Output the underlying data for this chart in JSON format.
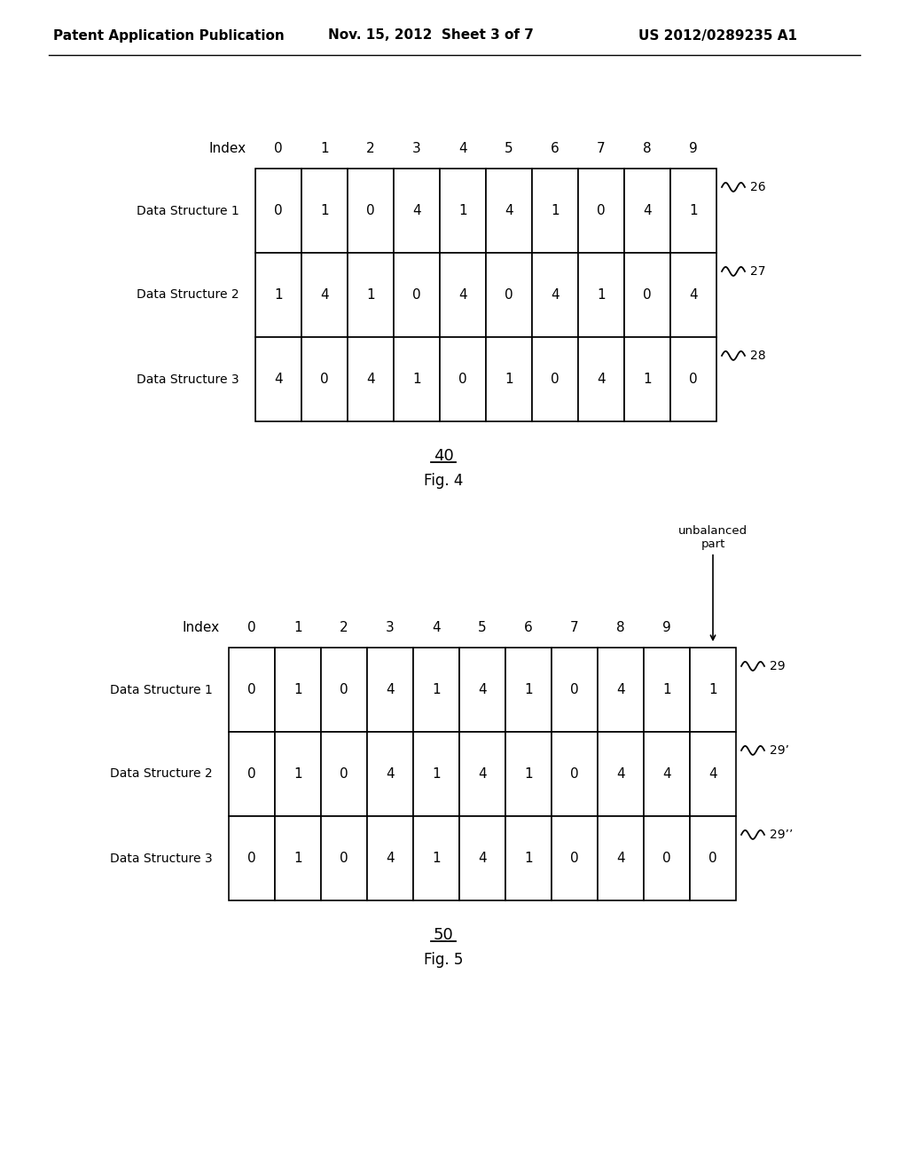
{
  "bg_color": "#ffffff",
  "fig4_label": "Fig. 4",
  "fig4_number": "40",
  "fig4_index_labels": [
    "0",
    "1",
    "2",
    "3",
    "4",
    "5",
    "6",
    "7",
    "8",
    "9"
  ],
  "fig4_row_labels": [
    "Data Structure 1",
    "Data Structure 2",
    "Data Structure 3"
  ],
  "fig4_data": [
    [
      0,
      1,
      0,
      4,
      1,
      4,
      1,
      0,
      4,
      1
    ],
    [
      1,
      4,
      1,
      0,
      4,
      0,
      4,
      1,
      0,
      4
    ],
    [
      4,
      0,
      4,
      1,
      0,
      1,
      0,
      4,
      1,
      0
    ]
  ],
  "fig4_ref_labels": [
    "26",
    "27",
    "28"
  ],
  "fig5_label": "Fig. 5",
  "fig5_number": "50",
  "fig5_index_labels": [
    "0",
    "1",
    "2",
    "3",
    "4",
    "5",
    "6",
    "7",
    "8",
    "9"
  ],
  "fig5_row_labels": [
    "Data Structure 1",
    "Data Structure 2",
    "Data Structure 3"
  ],
  "fig5_data": [
    [
      0,
      1,
      0,
      4,
      1,
      4,
      1,
      0,
      4,
      1,
      1
    ],
    [
      0,
      1,
      0,
      4,
      1,
      4,
      1,
      0,
      4,
      4,
      4
    ],
    [
      0,
      1,
      0,
      4,
      1,
      4,
      1,
      0,
      4,
      0,
      0
    ]
  ],
  "fig5_ref_labels": [
    "29",
    "29’",
    "29’’"
  ],
  "fig5_unbalanced_label": "unbalanced\npart",
  "font_size_header": 11,
  "font_size_label": 10,
  "font_size_index": 11,
  "font_size_cell": 11,
  "font_size_ref": 10,
  "font_size_fig": 12,
  "font_size_num": 12
}
